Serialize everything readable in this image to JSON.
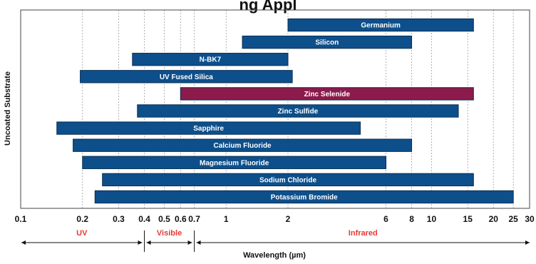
{
  "chart_data": {
    "type": "bar",
    "orientation": "horizontal-range",
    "title_visible_fragment": "ng Appl",
    "xlabel": "Wavelength (µm)",
    "ylabel": "Uncoated Substrate",
    "x_scale": "log",
    "xlim": [
      0.1,
      30
    ],
    "x_ticks": [
      {
        "value": 0.1,
        "label": "0.1"
      },
      {
        "value": 0.2,
        "label": "0.2"
      },
      {
        "value": 0.3,
        "label": "0.3"
      },
      {
        "value": 0.4,
        "label": "0.4"
      },
      {
        "value": 0.5,
        "label": "0.5"
      },
      {
        "value": 0.6,
        "label": "0.6"
      },
      {
        "value": 0.7,
        "label": "0.7"
      },
      {
        "value": 1,
        "label": "1"
      },
      {
        "value": 2,
        "label": "2"
      },
      {
        "value": 6,
        "label": "6"
      },
      {
        "value": 8,
        "label": "8"
      },
      {
        "value": 10,
        "label": "10"
      },
      {
        "value": 15,
        "label": "15"
      },
      {
        "value": 20,
        "label": "20"
      },
      {
        "value": 25,
        "label": "25"
      },
      {
        "value": 30,
        "label": "30"
      }
    ],
    "grid": true,
    "bars": [
      {
        "name": "Germanium",
        "start": 2.0,
        "end": 16.0,
        "color": "#0d4f8b"
      },
      {
        "name": "Silicon",
        "start": 1.2,
        "end": 8.0,
        "color": "#0d4f8b"
      },
      {
        "name": "N-BK7",
        "start": 0.35,
        "end": 2.0,
        "color": "#0d4f8b"
      },
      {
        "name": "UV Fused Silica",
        "start": 0.195,
        "end": 2.1,
        "color": "#0d4f8b"
      },
      {
        "name": "Zinc Selenide",
        "start": 0.6,
        "end": 16.0,
        "color": "#8c1a4b"
      },
      {
        "name": "Zinc Sulfide",
        "start": 0.37,
        "end": 13.5,
        "color": "#0d4f8b"
      },
      {
        "name": "Sapphire",
        "start": 0.15,
        "end": 4.5,
        "color": "#0d4f8b"
      },
      {
        "name": "Calcium Fluoride",
        "start": 0.18,
        "end": 8.0,
        "color": "#0d4f8b"
      },
      {
        "name": "Magnesium Fluoride",
        "start": 0.2,
        "end": 6.0,
        "color": "#0d4f8b"
      },
      {
        "name": "Sodium Chloride",
        "start": 0.25,
        "end": 16.0,
        "color": "#0d4f8b"
      },
      {
        "name": "Potassium Bromide",
        "start": 0.23,
        "end": 25.0,
        "color": "#0d4f8b"
      }
    ],
    "regions": [
      {
        "label": "UV",
        "from": 0.1,
        "to": 0.4
      },
      {
        "label": "Visible",
        "from": 0.4,
        "to": 0.7
      },
      {
        "label": "Infrared",
        "from": 0.7,
        "to": 30
      }
    ],
    "colors": {
      "bar_default": "#0d4f8b",
      "bar_highlight": "#8c1a4b",
      "region_text": "#e53935",
      "grid": "#9e9e9e"
    }
  }
}
